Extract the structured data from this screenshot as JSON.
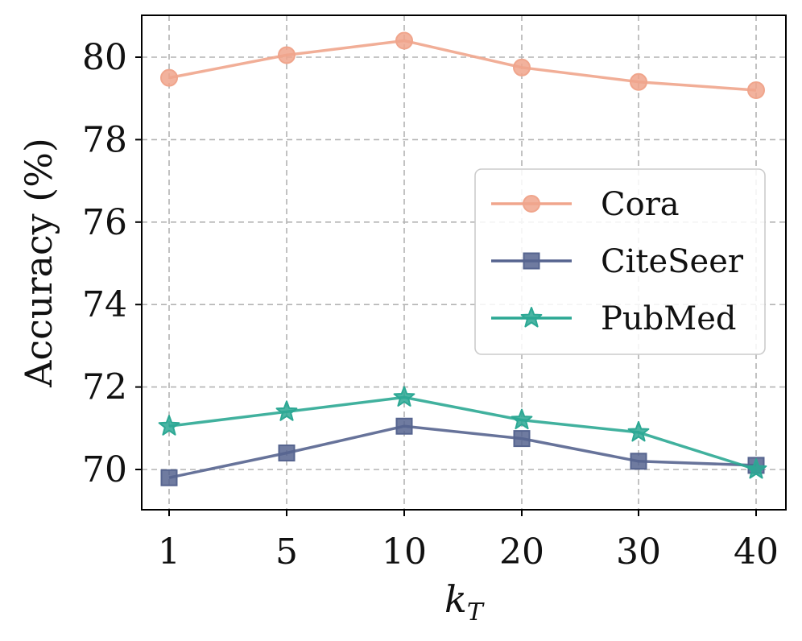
{
  "chart_data": {
    "type": "line",
    "title": "",
    "xlabel": "k",
    "xlabel_subscript": "T",
    "ylabel": "Accuracy (%)",
    "categories": [
      "1",
      "5",
      "10",
      "20",
      "30",
      "40"
    ],
    "ylim": [
      69,
      81
    ],
    "yticks": [
      70,
      72,
      74,
      76,
      78,
      80
    ],
    "ytick_labels": [
      "70",
      "72",
      "74",
      "76",
      "78",
      "80"
    ],
    "grid": true,
    "legend_position": "center-right",
    "series": [
      {
        "name": "Cora",
        "color": "#f0a58c",
        "marker": "circle",
        "values": [
          79.5,
          80.05,
          80.4,
          79.75,
          79.4,
          79.2
        ]
      },
      {
        "name": "CiteSeer",
        "color": "#56648f",
        "marker": "square",
        "values": [
          69.8,
          70.4,
          71.05,
          70.75,
          70.2,
          70.1
        ]
      },
      {
        "name": "PubMed",
        "color": "#2ca894",
        "marker": "star",
        "values": [
          71.05,
          71.4,
          71.75,
          71.2,
          70.9,
          70.0
        ]
      }
    ]
  }
}
